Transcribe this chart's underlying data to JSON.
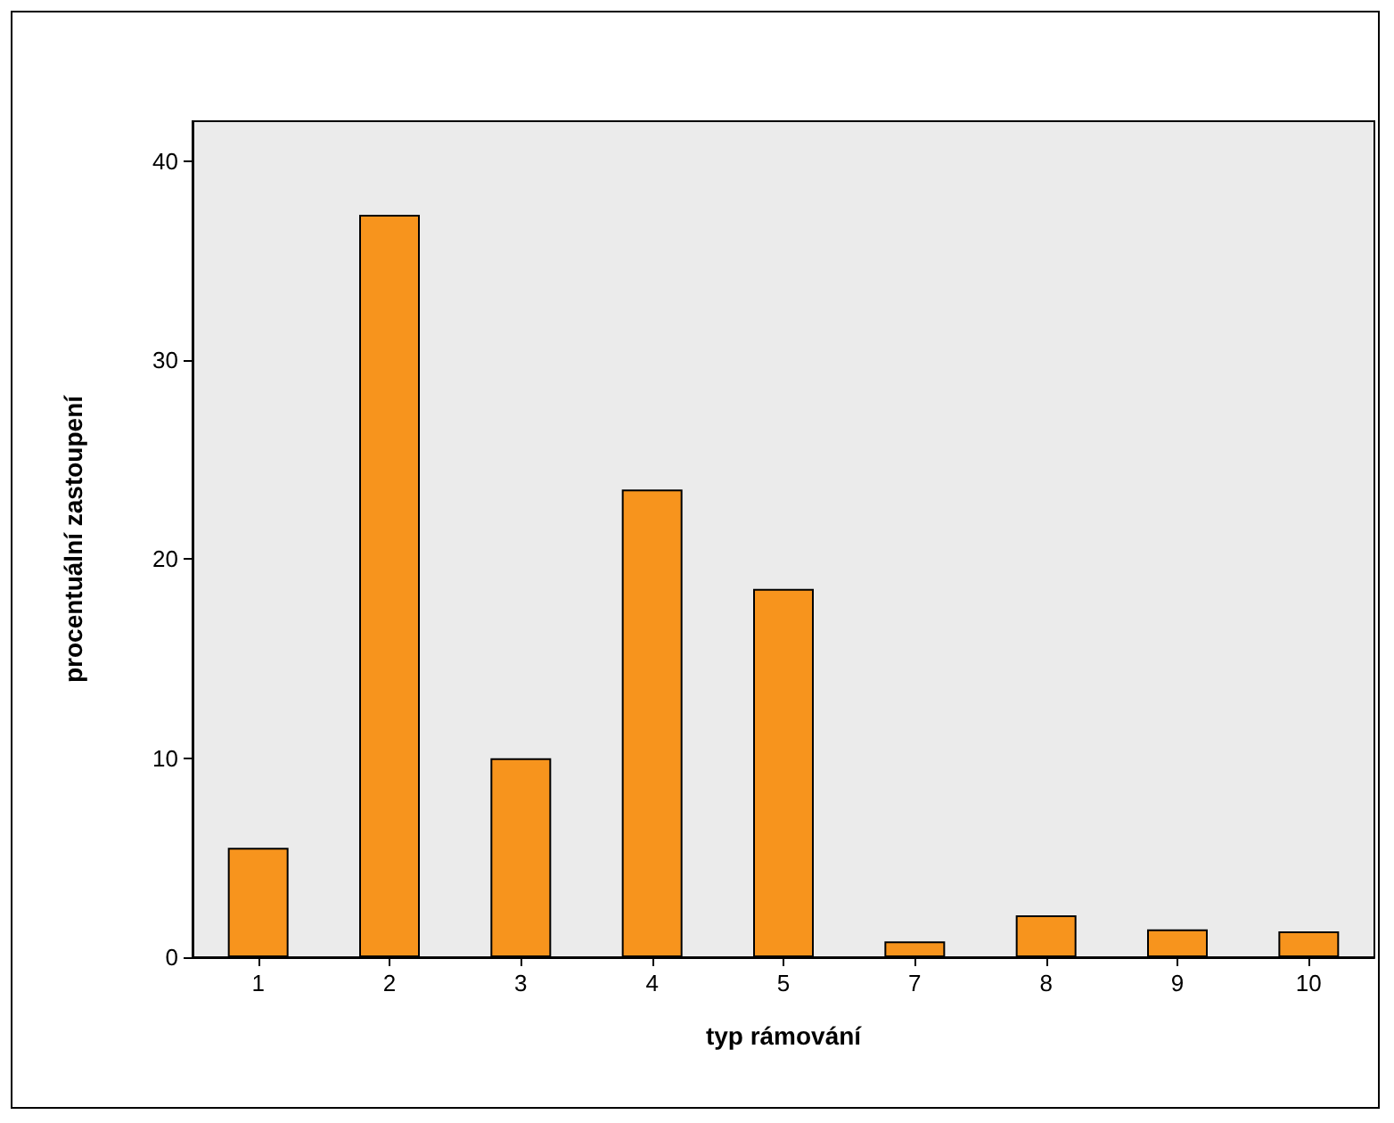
{
  "chart_data": {
    "type": "bar",
    "xlabel": "typ rámování",
    "ylabel": "procentuální zastoupení",
    "categories": [
      "1",
      "2",
      "3",
      "4",
      "5",
      "7",
      "8",
      "9",
      "10"
    ],
    "values": [
      5.5,
      37.3,
      10.0,
      23.5,
      18.5,
      0.8,
      2.1,
      1.4,
      1.3
    ],
    "color": "#f7941d",
    "ylim": [
      0,
      42
    ],
    "yticks": [
      0,
      10,
      20,
      30,
      40
    ],
    "grid": false
  }
}
